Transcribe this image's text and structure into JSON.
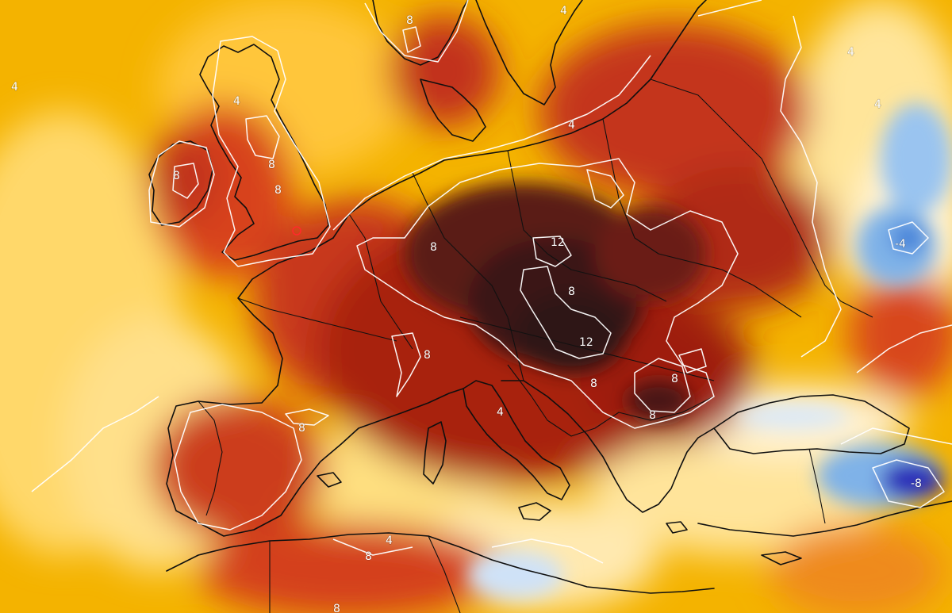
{
  "map": {
    "contour_labels": [
      "4",
      "8",
      "12",
      "-4",
      "-8"
    ],
    "colors": {
      "anomaly_neg_strong": "#2a2ab8",
      "anomaly_neg": "#7fb2e8",
      "anomaly_near_zero": "#fff6dc",
      "anomaly_low": "#ffd24a",
      "anomaly_mid": "#f59a1a",
      "anomaly_high": "#d8421a",
      "anomaly_very_high": "#9e1a10",
      "anomaly_extreme": "#3a1414",
      "coastline": "#0f0f0f",
      "contour": "#ffffff"
    }
  }
}
